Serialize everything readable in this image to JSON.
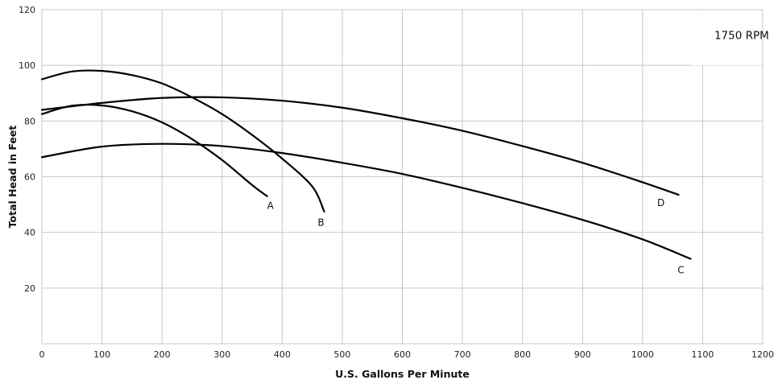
{
  "chart_data": {
    "type": "line",
    "title": "",
    "xlabel": "U.S. Gallons Per Minute",
    "ylabel": "Total Head in Feet",
    "xlim": [
      0,
      1200
    ],
    "ylim": [
      0,
      120
    ],
    "xticks": [
      0,
      100,
      200,
      300,
      400,
      500,
      600,
      700,
      800,
      900,
      1000,
      1100,
      1200
    ],
    "yticks": [
      20,
      40,
      60,
      80,
      100,
      120
    ],
    "grid": true,
    "annotation": "1750 RPM",
    "series": [
      {
        "name": "A",
        "x": [
          0,
          50,
          100,
          150,
          200,
          250,
          300,
          350,
          375
        ],
        "y": [
          82.5,
          85.5,
          85.6,
          83.5,
          79.5,
          73.5,
          66,
          57,
          53
        ]
      },
      {
        "name": "B",
        "x": [
          0,
          50,
          100,
          150,
          200,
          250,
          300,
          350,
          400,
          450,
          470
        ],
        "y": [
          95,
          97.8,
          98,
          96.5,
          93.5,
          88.5,
          82.5,
          75,
          66.5,
          56.5,
          47.5
        ]
      },
      {
        "name": "C",
        "x": [
          0,
          100,
          200,
          300,
          400,
          500,
          600,
          700,
          800,
          900,
          1000,
          1080
        ],
        "y": [
          67,
          70.8,
          71.8,
          71,
          68.5,
          65,
          61,
          56,
          50.5,
          44.5,
          37.5,
          30.5
        ]
      },
      {
        "name": "D",
        "x": [
          0,
          100,
          200,
          300,
          400,
          500,
          600,
          700,
          800,
          900,
          1000,
          1060
        ],
        "y": [
          84,
          86.5,
          88.3,
          88.5,
          87.3,
          84.8,
          81,
          76.5,
          71,
          65,
          58,
          53.5
        ]
      }
    ]
  }
}
